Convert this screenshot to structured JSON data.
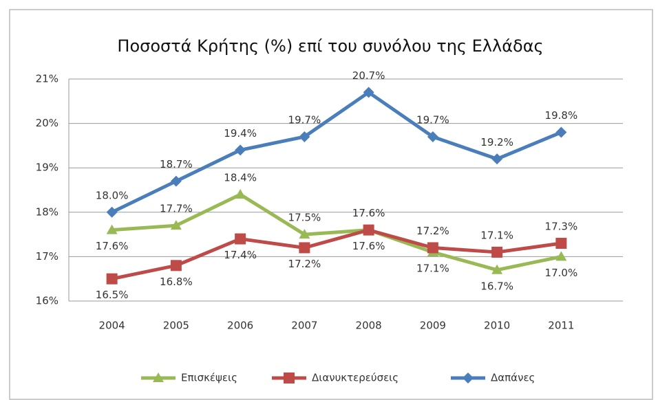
{
  "chart_data": {
    "type": "line",
    "title": "Ποσοστά Κρήτης (%) επί του συνόλου της Ελλάδας",
    "categories": [
      "2004",
      "2005",
      "2006",
      "2007",
      "2008",
      "2009",
      "2010",
      "2011"
    ],
    "series": [
      {
        "name": "Επισκέψεις",
        "color": "#98b954",
        "marker": "triangle",
        "values": [
          17.6,
          17.7,
          18.4,
          17.5,
          17.6,
          17.1,
          16.7,
          17.0
        ],
        "value_labels": [
          "17.6%",
          "17.7%",
          "18.4%",
          "17.5%",
          "17.6%",
          "17.1%",
          "16.7%",
          "17.0%"
        ]
      },
      {
        "name": "Διανυκτερεύσεις",
        "color": "#be4b48",
        "marker": "square",
        "values": [
          16.5,
          16.8,
          17.4,
          17.2,
          17.6,
          17.2,
          17.1,
          17.3
        ],
        "value_labels": [
          "16.5%",
          "16.8%",
          "17.4%",
          "17.2%",
          "17.6%",
          "17.2%",
          "17.1%",
          "17.3%"
        ]
      },
      {
        "name": "Δαπάνες",
        "color": "#4a7ebb",
        "marker": "diamond",
        "values": [
          18.0,
          18.7,
          19.4,
          19.7,
          20.7,
          19.7,
          19.2,
          19.8
        ],
        "value_labels": [
          "18.0%",
          "18.7%",
          "19.4%",
          "19.7%",
          "20.7%",
          "19.7%",
          "19.2%",
          "19.8%"
        ]
      }
    ],
    "ylim": [
      16,
      21
    ],
    "yticks": [
      {
        "value": 16,
        "label": "16%"
      },
      {
        "value": 17,
        "label": "17%"
      },
      {
        "value": 18,
        "label": "18%"
      },
      {
        "value": 19,
        "label": "19%"
      },
      {
        "value": 20,
        "label": "20%"
      },
      {
        "value": 21,
        "label": "21%"
      }
    ],
    "grid": true,
    "legend": "bottom"
  }
}
